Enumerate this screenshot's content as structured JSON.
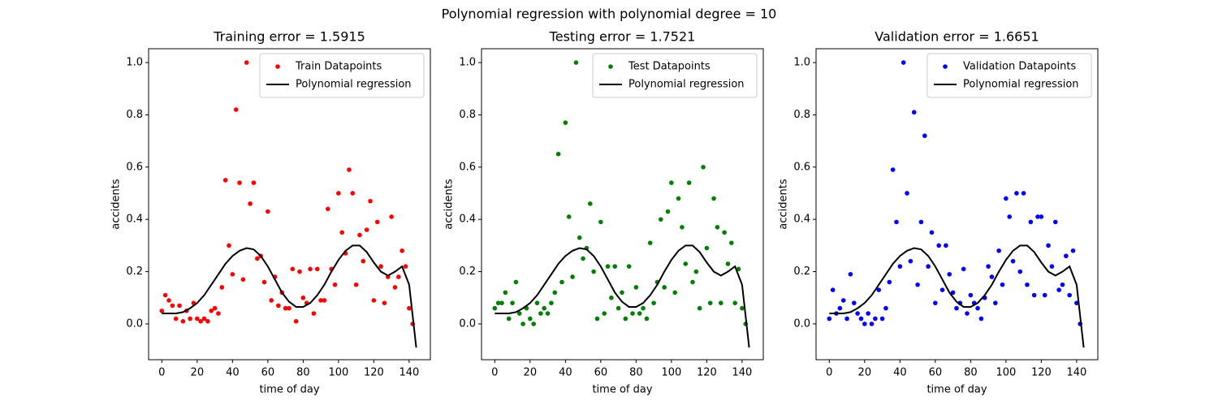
{
  "title": "Polynomial regression with polynomial degree = 10",
  "chart_data": [
    {
      "type": "scatter",
      "title": "Training error = 1.5915",
      "xlabel": "time of day",
      "ylabel": "accidents",
      "xlim": [
        -7.5,
        152
      ],
      "ylim": [
        -0.137,
        1.053
      ],
      "xticks": [
        0,
        20,
        40,
        60,
        80,
        100,
        120,
        140
      ],
      "yticks": [
        {
          "value": 0,
          "label": "0.0"
        },
        {
          "value": 0.2,
          "label": "0.2"
        },
        {
          "value": 0.4,
          "label": "0.4"
        },
        {
          "value": 0.6,
          "label": "0.6"
        },
        {
          "value": 0.8,
          "label": "0.8"
        },
        {
          "value": 1,
          "label": "1.0"
        }
      ],
      "grid": false,
      "legend": "upper right",
      "series": [
        {
          "name": "Train Datapoints",
          "type": "scatter",
          "color": "#ff0000",
          "x": [
            0,
            2,
            4,
            6,
            8,
            10,
            12,
            14,
            16,
            18,
            20,
            22,
            24,
            26,
            28,
            30,
            32,
            34,
            36,
            38,
            40,
            42,
            44,
            46,
            48,
            50,
            52,
            54,
            56,
            58,
            60,
            62,
            64,
            66,
            68,
            70,
            72,
            74,
            76,
            78,
            80,
            82,
            84,
            86,
            88,
            90,
            92,
            94,
            96,
            98,
            100,
            102,
            104,
            106,
            108,
            110,
            112,
            114,
            116,
            118,
            120,
            122,
            124,
            126,
            128,
            130,
            132,
            134,
            136,
            138,
            140,
            142
          ],
          "values": [
            0.05,
            0.11,
            0.09,
            0.07,
            0.02,
            0.07,
            0.01,
            0.05,
            0.02,
            0.08,
            0.02,
            0.01,
            0.02,
            0.01,
            0.05,
            0.06,
            0.04,
            0.14,
            0.55,
            0.3,
            0.19,
            0.82,
            0.54,
            0.17,
            1.0,
            0.46,
            0.54,
            0.25,
            0.26,
            0.16,
            0.43,
            0.09,
            0.18,
            0.07,
            0.12,
            0.06,
            0.06,
            0.21,
            0.01,
            0.2,
            0.1,
            0.08,
            0.21,
            0.04,
            0.21,
            0.09,
            0.09,
            0.44,
            0.21,
            0.15,
            0.5,
            0.35,
            0.27,
            0.59,
            0.5,
            0.15,
            0.34,
            0.24,
            0.36,
            0.47,
            0.09,
            0.39,
            0.22,
            0.08,
            0.18,
            0.41,
            0.14,
            0.18,
            0.28,
            0.22,
            0.06,
            0.0
          ]
        },
        {
          "name": "Polynomial regression",
          "type": "line",
          "color": "#000000",
          "x": [
            0,
            4,
            8,
            12,
            16,
            20,
            24,
            28,
            32,
            36,
            40,
            44,
            48,
            52,
            56,
            60,
            64,
            68,
            72,
            76,
            80,
            84,
            88,
            92,
            96,
            100,
            104,
            108,
            112,
            116,
            120,
            124,
            128,
            132,
            136,
            140,
            144
          ],
          "values": [
            0.04,
            0.04,
            0.04,
            0.045,
            0.06,
            0.08,
            0.11,
            0.15,
            0.19,
            0.23,
            0.26,
            0.28,
            0.29,
            0.285,
            0.26,
            0.22,
            0.17,
            0.12,
            0.085,
            0.065,
            0.065,
            0.08,
            0.11,
            0.15,
            0.2,
            0.245,
            0.28,
            0.3,
            0.3,
            0.275,
            0.235,
            0.2,
            0.185,
            0.2,
            0.22,
            0.15,
            -0.09
          ]
        }
      ]
    },
    {
      "type": "scatter",
      "title": "Testing error = 1.7521",
      "xlabel": "time of day",
      "ylabel": "accidents",
      "xlim": [
        -7.5,
        152
      ],
      "ylim": [
        -0.137,
        1.053
      ],
      "xticks": [
        0,
        20,
        40,
        60,
        80,
        100,
        120,
        140
      ],
      "yticks": [
        {
          "value": 0,
          "label": "0.0"
        },
        {
          "value": 0.2,
          "label": "0.2"
        },
        {
          "value": 0.4,
          "label": "0.4"
        },
        {
          "value": 0.6,
          "label": "0.6"
        },
        {
          "value": 0.8,
          "label": "0.8"
        },
        {
          "value": 1,
          "label": "1.0"
        }
      ],
      "grid": false,
      "legend": "upper right",
      "series": [
        {
          "name": "Test Datapoints",
          "type": "scatter",
          "color": "#008000",
          "x": [
            0,
            2,
            4,
            6,
            8,
            10,
            12,
            14,
            16,
            18,
            20,
            22,
            24,
            26,
            28,
            30,
            32,
            34,
            36,
            38,
            40,
            42,
            44,
            46,
            48,
            50,
            52,
            54,
            56,
            58,
            60,
            62,
            64,
            66,
            68,
            70,
            72,
            74,
            76,
            78,
            80,
            82,
            84,
            86,
            88,
            90,
            92,
            94,
            96,
            98,
            100,
            102,
            104,
            106,
            108,
            110,
            112,
            114,
            116,
            118,
            120,
            122,
            124,
            126,
            128,
            130,
            132,
            134,
            136,
            138,
            140,
            142
          ],
          "values": [
            0.06,
            0.08,
            0.08,
            0.12,
            0.02,
            0.08,
            0.16,
            0.04,
            0.0,
            0.06,
            0.02,
            0.0,
            0.08,
            0.04,
            0.06,
            0.04,
            0.08,
            0.12,
            0.65,
            0.16,
            0.77,
            0.41,
            0.18,
            1.0,
            0.33,
            0.25,
            0.29,
            0.46,
            0.2,
            0.02,
            0.39,
            0.04,
            0.22,
            0.1,
            0.22,
            0.06,
            0.12,
            0.02,
            0.22,
            0.04,
            0.14,
            0.04,
            0.06,
            0.02,
            0.31,
            0.08,
            0.16,
            0.4,
            0.14,
            0.43,
            0.54,
            0.12,
            0.48,
            0.37,
            0.23,
            0.54,
            0.16,
            0.2,
            0.06,
            0.6,
            0.29,
            0.08,
            0.48,
            0.37,
            0.08,
            0.35,
            0.23,
            0.31,
            0.08,
            0.21,
            0.06,
            0.0
          ]
        },
        {
          "name": "Polynomial regression",
          "type": "line",
          "color": "#000000",
          "x": [
            0,
            4,
            8,
            12,
            16,
            20,
            24,
            28,
            32,
            36,
            40,
            44,
            48,
            52,
            56,
            60,
            64,
            68,
            72,
            76,
            80,
            84,
            88,
            92,
            96,
            100,
            104,
            108,
            112,
            116,
            120,
            124,
            128,
            132,
            136,
            140,
            144
          ],
          "values": [
            0.04,
            0.04,
            0.04,
            0.045,
            0.06,
            0.08,
            0.11,
            0.15,
            0.19,
            0.23,
            0.26,
            0.28,
            0.29,
            0.285,
            0.26,
            0.22,
            0.17,
            0.12,
            0.085,
            0.065,
            0.065,
            0.08,
            0.11,
            0.15,
            0.2,
            0.245,
            0.28,
            0.3,
            0.3,
            0.275,
            0.235,
            0.2,
            0.185,
            0.2,
            0.22,
            0.15,
            -0.09
          ]
        }
      ]
    },
    {
      "type": "scatter",
      "title": "Validation error = 1.6651",
      "xlabel": "time of day",
      "ylabel": "accidents",
      "xlim": [
        -7.5,
        152
      ],
      "ylim": [
        -0.137,
        1.053
      ],
      "xticks": [
        0,
        20,
        40,
        60,
        80,
        100,
        120,
        140
      ],
      "yticks": [
        {
          "value": 0,
          "label": "0.0"
        },
        {
          "value": 0.2,
          "label": "0.2"
        },
        {
          "value": 0.4,
          "label": "0.4"
        },
        {
          "value": 0.6,
          "label": "0.6"
        },
        {
          "value": 0.8,
          "label": "0.8"
        },
        {
          "value": 1,
          "label": "1.0"
        }
      ],
      "grid": false,
      "legend": "upper right",
      "series": [
        {
          "name": "Validation Datapoints",
          "type": "scatter",
          "color": "#0000ff",
          "x": [
            0,
            2,
            4,
            6,
            8,
            10,
            12,
            14,
            16,
            18,
            20,
            22,
            24,
            26,
            28,
            30,
            32,
            34,
            36,
            38,
            40,
            42,
            44,
            46,
            48,
            50,
            52,
            54,
            56,
            58,
            60,
            62,
            64,
            66,
            68,
            70,
            72,
            74,
            76,
            78,
            80,
            82,
            84,
            86,
            88,
            90,
            92,
            94,
            96,
            98,
            100,
            102,
            104,
            106,
            108,
            110,
            112,
            114,
            116,
            118,
            120,
            122,
            124,
            126,
            128,
            130,
            132,
            134,
            136,
            138,
            140,
            142
          ],
          "values": [
            0.02,
            0.13,
            0.04,
            0.06,
            0.09,
            0.02,
            0.19,
            0.08,
            0.04,
            0.02,
            0.0,
            0.04,
            0.0,
            0.02,
            0.13,
            0.02,
            0.06,
            0.16,
            0.59,
            0.39,
            0.22,
            1.0,
            0.5,
            0.24,
            0.81,
            0.15,
            0.39,
            0.72,
            0.22,
            0.35,
            0.08,
            0.3,
            0.13,
            0.3,
            0.19,
            0.12,
            0.06,
            0.08,
            0.21,
            0.04,
            0.11,
            0.08,
            0.06,
            0.02,
            0.1,
            0.22,
            0.18,
            0.08,
            0.28,
            0.15,
            0.48,
            0.41,
            0.24,
            0.5,
            0.2,
            0.5,
            0.15,
            0.39,
            0.11,
            0.41,
            0.41,
            0.11,
            0.3,
            0.22,
            0.39,
            0.13,
            0.15,
            0.26,
            0.11,
            0.28,
            0.08,
            0.0
          ]
        },
        {
          "name": "Polynomial regression",
          "type": "line",
          "color": "#000000",
          "x": [
            0,
            4,
            8,
            12,
            16,
            20,
            24,
            28,
            32,
            36,
            40,
            44,
            48,
            52,
            56,
            60,
            64,
            68,
            72,
            76,
            80,
            84,
            88,
            92,
            96,
            100,
            104,
            108,
            112,
            116,
            120,
            124,
            128,
            132,
            136,
            140,
            144
          ],
          "values": [
            0.04,
            0.04,
            0.04,
            0.045,
            0.06,
            0.08,
            0.11,
            0.15,
            0.19,
            0.23,
            0.26,
            0.28,
            0.29,
            0.285,
            0.26,
            0.22,
            0.17,
            0.12,
            0.085,
            0.065,
            0.065,
            0.08,
            0.11,
            0.15,
            0.2,
            0.245,
            0.28,
            0.3,
            0.3,
            0.275,
            0.235,
            0.2,
            0.185,
            0.2,
            0.22,
            0.15,
            -0.09
          ]
        }
      ]
    }
  ]
}
